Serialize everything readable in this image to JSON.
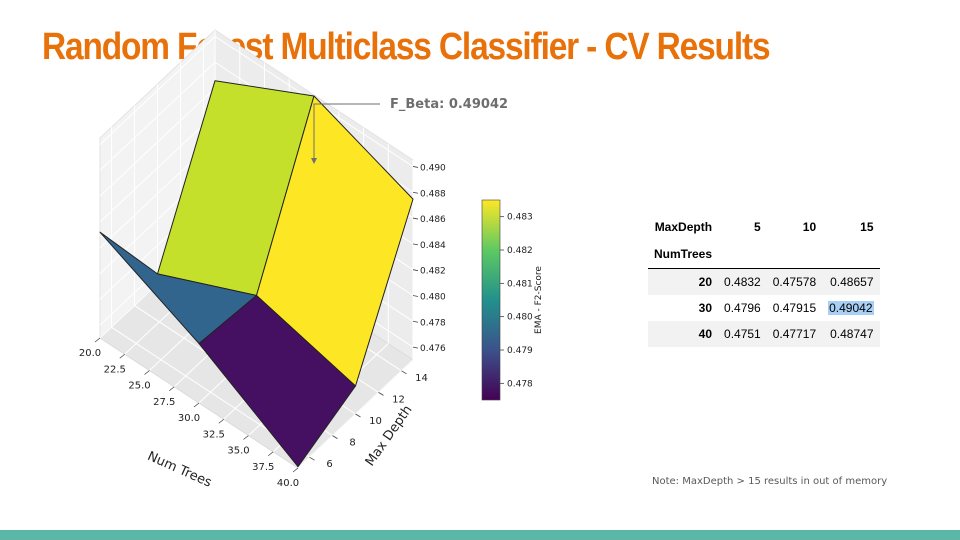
{
  "slide": {
    "title": "Random Forest Multiclass Classifier - CV Results",
    "annotation": "F_Beta: 0.49042",
    "footnote": "Note: MaxDepth > 15 results in out of memory",
    "accent_color": "#e8710a",
    "band_color": "#5bb8a8"
  },
  "chart_data": {
    "type": "surface3d",
    "xlabel": "Num Trees",
    "ylabel": "Max Depth",
    "zlabel": "",
    "colorbar_label": "EMA - F2-Score",
    "colormap": "viridis",
    "x": [
      20,
      30,
      40
    ],
    "y": [
      5,
      10,
      15
    ],
    "z": [
      [
        0.4832,
        0.47578,
        0.48657
      ],
      [
        0.4796,
        0.47915,
        0.49042
      ],
      [
        0.4751,
        0.47717,
        0.48747
      ]
    ],
    "xticks": [
      "20.0",
      "22.5",
      "25.0",
      "27.5",
      "30.0",
      "32.5",
      "35.0",
      "37.5",
      "40.0"
    ],
    "yticks": [
      "6",
      "8",
      "10",
      "12",
      "14"
    ],
    "zticks": [
      "0.476",
      "0.478",
      "0.480",
      "0.482",
      "0.484",
      "0.486",
      "0.488",
      "0.490"
    ],
    "colorbar_ticks": [
      "0.478",
      "0.479",
      "0.480",
      "0.481",
      "0.482",
      "0.483"
    ],
    "colorbar_range": [
      0.4775,
      0.4835
    ]
  },
  "table": {
    "col_header_label": "MaxDepth",
    "row_header_label": "NumTrees",
    "columns": [
      "5",
      "10",
      "15"
    ],
    "rows": [
      {
        "index": "20",
        "values": [
          "0.4832",
          "0.47578",
          "0.48657"
        ]
      },
      {
        "index": "30",
        "values": [
          "0.4796",
          "0.47915",
          "0.49042"
        ]
      },
      {
        "index": "40",
        "values": [
          "0.4751",
          "0.47717",
          "0.48747"
        ]
      }
    ],
    "highlight_color": "#a8d0f5"
  }
}
